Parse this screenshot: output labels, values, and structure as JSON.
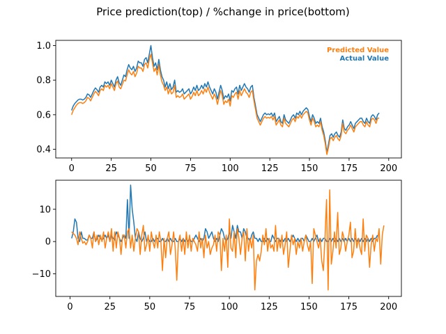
{
  "figure": {
    "title": "Price prediction(top) / %change in price(bottom)"
  },
  "colors": {
    "actual": "#1f77b4",
    "predicted": "#ff7f0e"
  },
  "chart_data": [
    {
      "type": "line",
      "title": "",
      "xlabel": "",
      "ylabel": "",
      "xlim": [
        -10,
        208
      ],
      "ylim": [
        0.35,
        1.03
      ],
      "xticks": [
        0,
        25,
        50,
        75,
        100,
        125,
        150,
        175,
        200
      ],
      "yticks": [
        0.4,
        0.6,
        0.8,
        1.0
      ],
      "ytick_labels": [
        "0.4",
        "0.6",
        "0.8",
        "1.0"
      ],
      "grid": false,
      "legend": "top-right",
      "series": [
        {
          "name": "Actual Value",
          "color": "#1f77b4",
          "x_start": 0,
          "values": [
            0.625,
            0.65,
            0.665,
            0.675,
            0.685,
            0.69,
            0.69,
            0.685,
            0.69,
            0.7,
            0.72,
            0.715,
            0.7,
            0.72,
            0.74,
            0.755,
            0.745,
            0.73,
            0.76,
            0.77,
            0.76,
            0.79,
            0.78,
            0.79,
            0.77,
            0.8,
            0.78,
            0.76,
            0.8,
            0.82,
            0.785,
            0.77,
            0.8,
            0.83,
            0.82,
            0.86,
            0.89,
            0.87,
            0.86,
            0.88,
            0.85,
            0.87,
            0.91,
            0.9,
            0.9,
            0.88,
            0.92,
            0.93,
            0.9,
            0.95,
            1.0,
            0.93,
            0.88,
            0.9,
            0.86,
            0.92,
            0.86,
            0.82,
            0.8,
            0.76,
            0.79,
            0.75,
            0.78,
            0.745,
            0.76,
            0.8,
            0.73,
            0.74,
            0.73,
            0.735,
            0.75,
            0.72,
            0.73,
            0.74,
            0.75,
            0.72,
            0.735,
            0.76,
            0.74,
            0.77,
            0.74,
            0.75,
            0.77,
            0.75,
            0.78,
            0.76,
            0.79,
            0.76,
            0.74,
            0.72,
            0.75,
            0.73,
            0.69,
            0.73,
            0.77,
            0.74,
            0.69,
            0.71,
            0.7,
            0.72,
            0.68,
            0.74,
            0.73,
            0.75,
            0.76,
            0.72,
            0.77,
            0.74,
            0.76,
            0.78,
            0.76,
            0.75,
            0.73,
            0.76,
            0.77,
            0.7,
            0.65,
            0.6,
            0.58,
            0.56,
            0.58,
            0.6,
            0.61,
            0.6,
            0.605,
            0.6,
            0.61,
            0.59,
            0.61,
            0.56,
            0.575,
            0.59,
            0.56,
            0.55,
            0.6,
            0.57,
            0.56,
            0.55,
            0.57,
            0.59,
            0.6,
            0.58,
            0.61,
            0.6,
            0.62,
            0.6,
            0.62,
            0.63,
            0.64,
            0.63,
            0.59,
            0.56,
            0.6,
            0.58,
            0.55,
            0.56,
            0.55,
            0.58,
            0.53,
            0.5,
            0.45,
            0.38,
            0.43,
            0.48,
            0.49,
            0.47,
            0.49,
            0.5,
            0.48,
            0.47,
            0.5,
            0.57,
            0.52,
            0.51,
            0.53,
            0.54,
            0.56,
            0.54,
            0.52,
            0.55,
            0.56,
            0.57,
            0.58,
            0.58,
            0.56,
            0.55,
            0.58,
            0.56,
            0.55,
            0.59,
            0.6,
            0.59,
            0.57,
            0.6,
            0.61
          ]
        },
        {
          "name": "Predicted Value",
          "color": "#ff7f0e",
          "x_start": 0,
          "values": [
            0.6,
            0.625,
            0.64,
            0.655,
            0.665,
            0.67,
            0.67,
            0.665,
            0.67,
            0.68,
            0.7,
            0.695,
            0.68,
            0.7,
            0.72,
            0.735,
            0.725,
            0.71,
            0.74,
            0.75,
            0.74,
            0.77,
            0.76,
            0.77,
            0.75,
            0.78,
            0.76,
            0.74,
            0.78,
            0.795,
            0.76,
            0.75,
            0.775,
            0.8,
            0.795,
            0.83,
            0.86,
            0.84,
            0.83,
            0.85,
            0.82,
            0.84,
            0.88,
            0.87,
            0.87,
            0.85,
            0.89,
            0.9,
            0.87,
            0.92,
            0.95,
            0.9,
            0.85,
            0.87,
            0.83,
            0.89,
            0.83,
            0.79,
            0.77,
            0.74,
            0.76,
            0.72,
            0.75,
            0.72,
            0.73,
            0.77,
            0.7,
            0.71,
            0.7,
            0.705,
            0.72,
            0.69,
            0.7,
            0.71,
            0.72,
            0.69,
            0.705,
            0.73,
            0.71,
            0.74,
            0.71,
            0.72,
            0.74,
            0.72,
            0.75,
            0.73,
            0.76,
            0.73,
            0.71,
            0.69,
            0.72,
            0.7,
            0.66,
            0.7,
            0.74,
            0.71,
            0.66,
            0.68,
            0.67,
            0.69,
            0.65,
            0.71,
            0.7,
            0.72,
            0.73,
            0.69,
            0.74,
            0.71,
            0.73,
            0.75,
            0.73,
            0.72,
            0.7,
            0.73,
            0.74,
            0.68,
            0.63,
            0.58,
            0.56,
            0.54,
            0.56,
            0.58,
            0.59,
            0.58,
            0.585,
            0.58,
            0.59,
            0.57,
            0.59,
            0.54,
            0.555,
            0.57,
            0.54,
            0.53,
            0.58,
            0.55,
            0.54,
            0.53,
            0.55,
            0.57,
            0.58,
            0.56,
            0.59,
            0.58,
            0.6,
            0.58,
            0.6,
            0.61,
            0.62,
            0.61,
            0.57,
            0.54,
            0.58,
            0.56,
            0.53,
            0.54,
            0.53,
            0.56,
            0.51,
            0.48,
            0.43,
            0.37,
            0.41,
            0.46,
            0.47,
            0.45,
            0.47,
            0.48,
            0.46,
            0.45,
            0.48,
            0.55,
            0.5,
            0.49,
            0.51,
            0.52,
            0.54,
            0.52,
            0.5,
            0.53,
            0.54,
            0.55,
            0.56,
            0.56,
            0.54,
            0.53,
            0.56,
            0.54,
            0.53,
            0.57,
            0.58,
            0.57,
            0.55,
            0.58,
            0.58
          ]
        }
      ]
    },
    {
      "type": "line",
      "title": "",
      "xlabel": "",
      "ylabel": "",
      "xlim": [
        -9,
        208
      ],
      "ylim": [
        -17,
        19
      ],
      "xticks": [
        0,
        25,
        50,
        75,
        100,
        125,
        150,
        175,
        200
      ],
      "yticks": [
        -10,
        0,
        10
      ],
      "ytick_labels": [
        "−10",
        "0",
        "10"
      ],
      "grid": false,
      "series": [
        {
          "name": "",
          "color": "#1f77b4",
          "x_start": 1,
          "values": [
            1,
            3,
            7,
            6,
            1,
            0,
            3,
            1,
            1,
            0.5,
            0.5,
            2,
            1,
            1,
            3,
            0,
            1,
            2,
            1,
            0.5,
            1,
            2,
            1,
            2,
            0,
            2,
            1,
            0.5,
            3,
            2,
            1,
            0,
            1,
            2,
            1,
            13,
            1,
            17.5,
            10,
            6,
            1,
            0,
            3,
            1,
            0,
            1,
            3,
            0,
            1,
            0,
            0,
            1,
            0,
            1,
            1,
            0,
            0,
            1,
            0,
            0,
            1,
            0,
            1,
            0,
            0,
            1,
            0,
            0,
            1,
            0,
            1,
            0,
            1,
            0,
            1,
            0,
            0,
            1,
            2,
            1,
            0,
            1,
            0,
            1,
            4,
            3,
            1,
            2,
            3,
            1,
            0,
            1,
            0,
            2,
            4,
            3,
            1,
            0,
            1,
            3,
            1,
            5,
            3,
            1,
            5,
            3,
            3,
            1,
            4,
            3,
            1,
            1,
            0,
            2,
            3,
            1,
            1,
            0,
            1,
            0,
            0,
            1,
            0,
            1,
            0,
            0,
            2,
            1,
            0,
            1,
            1,
            0,
            1,
            0,
            1,
            0,
            1,
            0,
            1,
            2,
            1,
            0,
            1,
            0,
            1,
            1,
            0,
            2,
            1,
            0,
            0,
            1,
            0,
            1,
            2,
            0,
            1,
            0,
            1,
            1,
            0,
            0,
            1,
            0,
            1,
            0,
            1,
            0,
            1,
            0,
            1,
            0,
            1,
            0,
            1,
            0,
            1,
            0,
            1,
            0,
            1,
            0,
            1,
            0,
            1,
            0,
            1,
            0,
            1,
            0,
            1,
            1,
            2
          ]
        },
        {
          "name": "",
          "color": "#ff7f0e",
          "x_start": 1,
          "values": [
            3,
            2.5,
            2,
            1,
            -1,
            3,
            1,
            -0.5,
            0,
            -1,
            0,
            2,
            1,
            -2,
            3,
            0,
            2,
            -1,
            2,
            0,
            3,
            -2,
            1,
            3,
            0,
            4,
            -3,
            3,
            -2,
            3,
            1,
            -4,
            2,
            2,
            -2,
            3,
            4,
            -2,
            2,
            -3,
            1,
            4,
            3,
            -4,
            2,
            5,
            -3,
            -1,
            2,
            -3,
            3,
            0,
            -2,
            2,
            -2,
            3,
            0,
            -9,
            1,
            -5,
            1,
            3,
            -4,
            -1,
            3,
            -2,
            -12,
            0,
            2,
            -3,
            1,
            -4,
            3,
            -2,
            2,
            -3,
            1,
            0,
            -1,
            -3,
            3,
            -2,
            1,
            -5,
            2,
            -2,
            0,
            -4,
            -2,
            -1,
            2,
            -3,
            3,
            2,
            -9,
            1,
            -3,
            2,
            -8,
            7,
            -2,
            -3,
            3,
            -5,
            4,
            1,
            -4,
            1,
            3,
            -6,
            4,
            -3,
            1,
            -2,
            2,
            -15,
            -6,
            -4,
            -6,
            -3,
            2,
            -1,
            4,
            -3,
            1,
            -2,
            -1,
            -3,
            5,
            -3,
            1,
            -2,
            2,
            -4,
            -1,
            3,
            -8,
            -3,
            2,
            -1,
            1,
            -4,
            0,
            -2,
            1,
            -3,
            0,
            2,
            -1,
            -3,
            0,
            -13,
            4,
            2,
            0,
            -2,
            1,
            -6,
            -9,
            1,
            13,
            -15,
            16,
            -7,
            -3,
            3,
            -2,
            9,
            -4,
            -2,
            3,
            1,
            -3,
            0,
            2,
            6,
            -5,
            -3,
            4,
            -2,
            1,
            -2,
            -4,
            7,
            -3,
            2,
            1,
            -8,
            -1,
            2,
            -3,
            1,
            0,
            4,
            -7,
            2,
            5
          ]
        }
      ]
    }
  ]
}
